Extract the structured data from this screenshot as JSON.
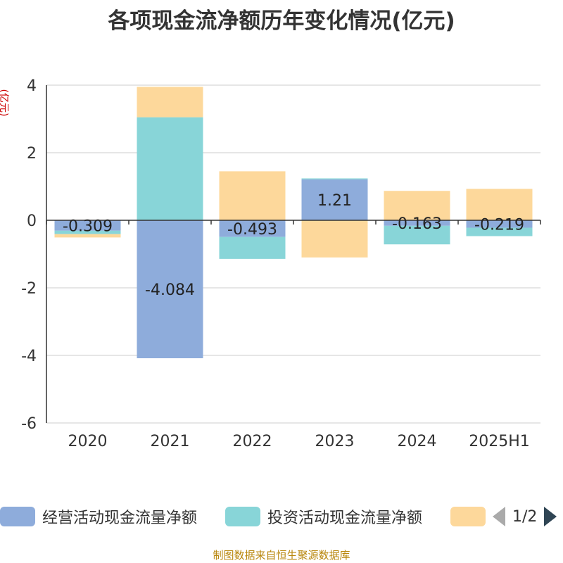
{
  "chart_data": {
    "type": "bar",
    "title": "各项现金流净额历年变化情况(亿元)",
    "ylabel": "(亿元)",
    "categories": [
      "2020",
      "2021",
      "2022",
      "2023",
      "2024",
      "2025H1"
    ],
    "ylim": [
      -6,
      4
    ],
    "yticks": [
      4,
      2,
      0,
      -2,
      -4,
      -6
    ],
    "grid": true,
    "stacked": true,
    "series": [
      {
        "name": "经营活动现金流量净额",
        "color": "#8eacdb",
        "values": [
          -0.309,
          -4.084,
          -0.493,
          1.21,
          -0.163,
          -0.219
        ],
        "labels": [
          "-0.309",
          "-4.084",
          "-0.493",
          "1.21",
          "-0.163",
          "-0.219"
        ]
      },
      {
        "name": "投资活动现金流量净额",
        "color": "#88d5d8",
        "values": [
          -0.1,
          3.05,
          -0.65,
          0.03,
          -0.55,
          -0.25
        ]
      },
      {
        "name": "",
        "color": "#fdd89b",
        "values": [
          -0.1,
          0.9,
          1.45,
          -1.1,
          0.87,
          0.93
        ]
      }
    ]
  },
  "legend": {
    "items": [
      {
        "label": "经营活动现金流量净额",
        "color": "#8eacdb"
      },
      {
        "label": "投资活动现金流量净额",
        "color": "#88d5d8"
      },
      {
        "label": "",
        "color": "#fdd89b"
      }
    ],
    "page": "1/2"
  },
  "footer": "制图数据来自恒生聚源数据库"
}
